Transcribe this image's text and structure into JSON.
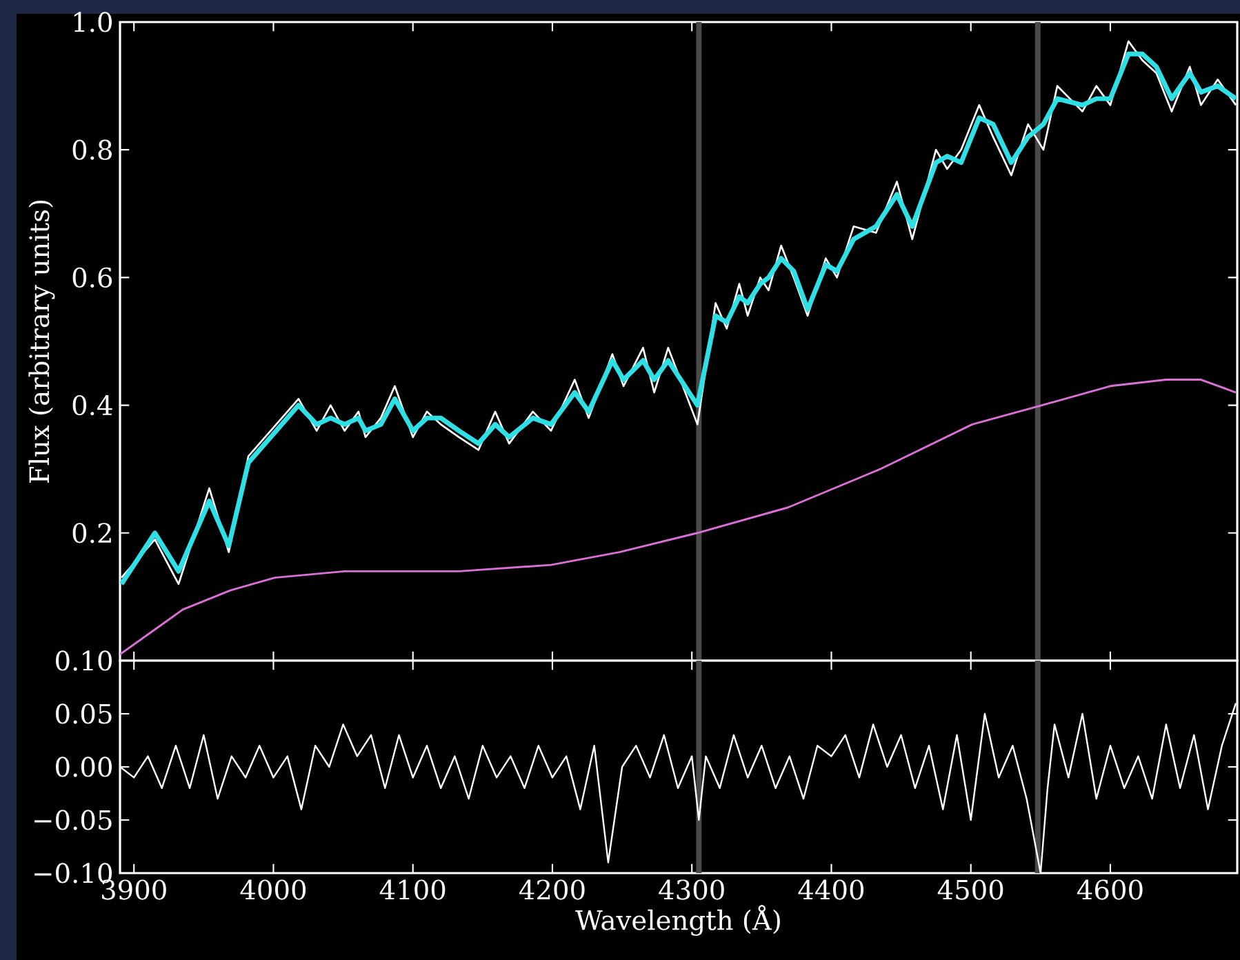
{
  "chart_data": [
    {
      "type": "line",
      "ylabel": "Flux (arbitrary units)",
      "xlim": [
        3890,
        4691
      ],
      "ylim": [
        0,
        1.0
      ],
      "xticks": [
        3900,
        4000,
        4100,
        4200,
        4300,
        4400,
        4500,
        4600
      ],
      "yticks": [
        0.2,
        0.4,
        0.6,
        0.8,
        {
          "value": 1,
          "label": "1.0"
        }
      ],
      "tick_labels": "y",
      "grid": false,
      "ref_lines": [
        {
          "axis": "x",
          "value": 4305,
          "color": "#4a4a4a"
        },
        {
          "axis": "x",
          "value": 4548,
          "color": "#4a4a4a"
        }
      ],
      "series": [
        {
          "color": "#ffffff",
          "x": [
            3891,
            3915,
            3932,
            3954,
            3968,
            3982,
            3994,
            4018,
            4031,
            4041,
            4051,
            4061,
            4066,
            4077,
            4087,
            4100,
            4110,
            4120,
            4133,
            4147,
            4159,
            4169,
            4186,
            4199,
            4216,
            4226,
            4243,
            4251,
            4265,
            4273,
            4283,
            4304,
            4317,
            4325,
            4334,
            4340,
            4349,
            4355,
            4364,
            4373,
            4383,
            4396,
            4404,
            4416,
            4432,
            4447,
            4458,
            4475,
            4483,
            4493,
            4506,
            4516,
            4529,
            4541,
            4552,
            4562,
            4580,
            4590,
            4600,
            4613,
            4623,
            4633,
            4644,
            4657,
            4665,
            4677,
            4690
          ],
          "values": [
            0.13,
            0.19,
            0.12,
            0.27,
            0.17,
            0.32,
            0.35,
            0.41,
            0.36,
            0.4,
            0.36,
            0.39,
            0.35,
            0.38,
            0.43,
            0.35,
            0.39,
            0.37,
            0.35,
            0.33,
            0.39,
            0.34,
            0.39,
            0.36,
            0.44,
            0.38,
            0.48,
            0.43,
            0.49,
            0.42,
            0.49,
            0.37,
            0.56,
            0.52,
            0.59,
            0.54,
            0.6,
            0.58,
            0.65,
            0.6,
            0.54,
            0.63,
            0.6,
            0.68,
            0.67,
            0.75,
            0.66,
            0.8,
            0.77,
            0.8,
            0.87,
            0.82,
            0.76,
            0.84,
            0.8,
            0.9,
            0.86,
            0.9,
            0.87,
            0.97,
            0.94,
            0.92,
            0.86,
            0.93,
            0.87,
            0.91,
            0.87
          ]
        },
        {
          "color": "#2ee0e6",
          "x": [
            3891,
            3915,
            3932,
            3954,
            3968,
            3982,
            3994,
            4018,
            4031,
            4041,
            4051,
            4061,
            4066,
            4077,
            4087,
            4100,
            4110,
            4120,
            4133,
            4147,
            4159,
            4169,
            4186,
            4199,
            4216,
            4226,
            4243,
            4251,
            4265,
            4273,
            4283,
            4304,
            4317,
            4325,
            4334,
            4340,
            4349,
            4355,
            4364,
            4373,
            4383,
            4396,
            4404,
            4416,
            4432,
            4447,
            4458,
            4475,
            4483,
            4493,
            4506,
            4516,
            4529,
            4541,
            4552,
            4562,
            4580,
            4590,
            4600,
            4613,
            4623,
            4633,
            4644,
            4657,
            4665,
            4677,
            4690
          ],
          "values": [
            0.12,
            0.2,
            0.14,
            0.25,
            0.18,
            0.31,
            0.34,
            0.4,
            0.37,
            0.38,
            0.37,
            0.38,
            0.36,
            0.37,
            0.41,
            0.36,
            0.38,
            0.38,
            0.36,
            0.34,
            0.37,
            0.35,
            0.38,
            0.37,
            0.42,
            0.39,
            0.47,
            0.44,
            0.47,
            0.44,
            0.47,
            0.4,
            0.54,
            0.53,
            0.57,
            0.56,
            0.59,
            0.6,
            0.63,
            0.61,
            0.55,
            0.62,
            0.61,
            0.66,
            0.68,
            0.73,
            0.68,
            0.78,
            0.79,
            0.78,
            0.85,
            0.84,
            0.78,
            0.82,
            0.84,
            0.88,
            0.87,
            0.88,
            0.88,
            0.95,
            0.95,
            0.93,
            0.88,
            0.92,
            0.89,
            0.9,
            0.88
          ]
        },
        {
          "color": "#da70d6",
          "x": [
            3890,
            3935,
            3969,
            4001,
            4051,
            4133,
            4199,
            4248,
            4304,
            4369,
            4435,
            4501,
            4551,
            4600,
            4640,
            4665,
            4690
          ],
          "values": [
            0.01,
            0.08,
            0.11,
            0.13,
            0.14,
            0.14,
            0.15,
            0.17,
            0.2,
            0.24,
            0.3,
            0.37,
            0.4,
            0.43,
            0.44,
            0.44,
            0.42
          ]
        }
      ]
    },
    {
      "type": "line",
      "xlabel": "Wavelength (Å)",
      "xlim": [
        3890,
        4691
      ],
      "ylim": [
        -0.1,
        0.1
      ],
      "xticks": [
        3900,
        4000,
        4100,
        4200,
        4300,
        4400,
        4500,
        4600
      ],
      "yticks": [
        {
          "value": -0.1,
          "label": "−0.10"
        },
        {
          "value": -0.05,
          "label": "−0.05"
        },
        {
          "value": 0,
          "label": "0.00"
        },
        {
          "value": 0.05,
          "label": "0.05"
        },
        {
          "value": 0.1,
          "label": "0.10"
        }
      ],
      "grid": false,
      "ref_lines": [
        {
          "axis": "x",
          "value": 4305,
          "color": "#4a4a4a"
        },
        {
          "axis": "x",
          "value": 4548,
          "color": "#4a4a4a"
        }
      ],
      "series": [
        {
          "color": "#ffffff",
          "x": [
            3890,
            3900,
            3910,
            3920,
            3930,
            3940,
            3950,
            3960,
            3970,
            3980,
            3990,
            4000,
            4010,
            4020,
            4030,
            4040,
            4050,
            4060,
            4070,
            4080,
            4090,
            4100,
            4110,
            4120,
            4130,
            4140,
            4150,
            4160,
            4170,
            4180,
            4190,
            4200,
            4210,
            4220,
            4230,
            4240,
            4250,
            4260,
            4270,
            4280,
            4290,
            4300,
            4305,
            4310,
            4320,
            4330,
            4340,
            4350,
            4360,
            4370,
            4380,
            4390,
            4400,
            4410,
            4420,
            4430,
            4440,
            4450,
            4460,
            4470,
            4480,
            4490,
            4500,
            4510,
            4520,
            4530,
            4540,
            4550,
            4555,
            4560,
            4570,
            4580,
            4590,
            4600,
            4610,
            4620,
            4630,
            4640,
            4650,
            4660,
            4670,
            4680,
            4690
          ],
          "values": [
            0.0,
            -0.01,
            0.01,
            -0.02,
            0.02,
            -0.02,
            0.03,
            -0.03,
            0.01,
            -0.01,
            0.02,
            -0.01,
            0.01,
            -0.04,
            0.02,
            0.0,
            0.04,
            0.01,
            0.03,
            -0.02,
            0.03,
            -0.01,
            0.02,
            -0.02,
            0.01,
            -0.03,
            0.02,
            -0.01,
            0.01,
            -0.02,
            0.02,
            -0.01,
            0.01,
            -0.04,
            0.02,
            -0.09,
            0.0,
            0.02,
            -0.01,
            0.03,
            -0.02,
            0.01,
            -0.05,
            0.01,
            -0.02,
            0.03,
            -0.01,
            0.02,
            -0.02,
            0.01,
            -0.03,
            0.02,
            0.01,
            0.03,
            -0.01,
            0.04,
            0.0,
            0.03,
            -0.02,
            0.02,
            -0.04,
            0.03,
            -0.05,
            0.05,
            -0.01,
            0.02,
            -0.03,
            -0.1,
            -0.02,
            0.04,
            -0.01,
            0.05,
            -0.03,
            0.02,
            -0.02,
            0.01,
            -0.03,
            0.04,
            -0.02,
            0.03,
            -0.04,
            0.02,
            0.06
          ]
        }
      ]
    }
  ]
}
